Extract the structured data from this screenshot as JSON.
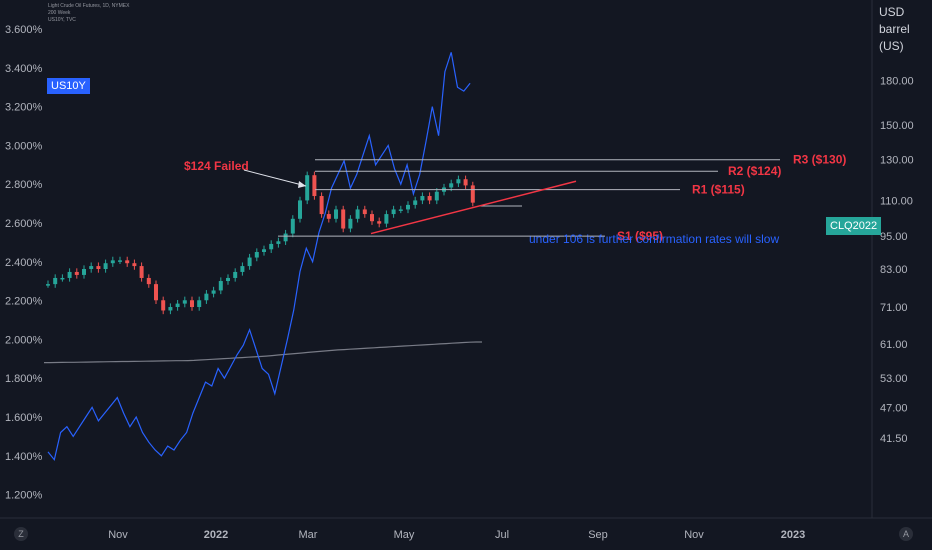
{
  "header": {
    "legend_lines": [
      "Light Crude Oil Futures, 1D, NYMEX",
      "200 Week",
      "US10Y, TVC"
    ],
    "unit_label": "USD\nbarrel (US)"
  },
  "badges": {
    "left_series": "US10Y",
    "right_series": "CLQ2022"
  },
  "footer": {
    "left_button": "Z",
    "right_button": "A"
  },
  "colors": {
    "background": "#131722",
    "yield_line": "#2962ff",
    "ma_line": "#787b86",
    "up_candle": "#26a69a",
    "down_candle": "#ef5350",
    "annotation_red": "#f23645",
    "annotation_blue": "#2962ff",
    "level_line": "#b2b5be"
  },
  "chart_data": {
    "type": "line",
    "grid": false,
    "left_axis": {
      "ticks": [
        "3.600%",
        "3.400%",
        "3.200%",
        "3.000%",
        "2.800%",
        "2.600%",
        "2.400%",
        "2.200%",
        "2.000%",
        "1.800%",
        "1.600%",
        "1.400%",
        "1.200%"
      ],
      "range": [
        1.1,
        3.7
      ]
    },
    "right_axis": {
      "ticks": [
        "180.00",
        "150.00",
        "130.00",
        "110.00",
        "95.00",
        "83.00",
        "71.00",
        "61.00",
        "53.00",
        "47.00",
        "41.50"
      ],
      "scale": "log",
      "range": [
        40,
        205
      ]
    },
    "x_axis": {
      "ticks": [
        "Nov",
        "2022",
        "Mar",
        "May",
        "Jul",
        "Sep",
        "Nov",
        "2023"
      ],
      "bold": [
        "2022",
        "2023"
      ]
    },
    "series": [
      {
        "name": "US10Y",
        "axis": "left",
        "points": [
          [
            0,
            1.42
          ],
          [
            1,
            1.38
          ],
          [
            2,
            1.52
          ],
          [
            3,
            1.55
          ],
          [
            4,
            1.5
          ],
          [
            5,
            1.55
          ],
          [
            6,
            1.6
          ],
          [
            7,
            1.65
          ],
          [
            8,
            1.58
          ],
          [
            9,
            1.62
          ],
          [
            10,
            1.66
          ],
          [
            11,
            1.7
          ],
          [
            12,
            1.62
          ],
          [
            13,
            1.55
          ],
          [
            14,
            1.6
          ],
          [
            15,
            1.52
          ],
          [
            16,
            1.47
          ],
          [
            17,
            1.43
          ],
          [
            18,
            1.4
          ],
          [
            19,
            1.45
          ],
          [
            20,
            1.43
          ],
          [
            21,
            1.48
          ],
          [
            22,
            1.52
          ],
          [
            23,
            1.62
          ],
          [
            24,
            1.7
          ],
          [
            25,
            1.78
          ],
          [
            26,
            1.76
          ],
          [
            27,
            1.85
          ],
          [
            28,
            1.8
          ],
          [
            29,
            1.86
          ],
          [
            30,
            1.92
          ],
          [
            31,
            1.97
          ],
          [
            32,
            2.05
          ],
          [
            33,
            1.95
          ],
          [
            34,
            1.85
          ],
          [
            35,
            1.82
          ],
          [
            36,
            1.72
          ],
          [
            37,
            1.86
          ],
          [
            38,
            2.0
          ],
          [
            39,
            2.15
          ],
          [
            40,
            2.35
          ],
          [
            41,
            2.47
          ],
          [
            42,
            2.4
          ],
          [
            43,
            2.55
          ],
          [
            44,
            2.65
          ],
          [
            45,
            2.78
          ],
          [
            46,
            2.85
          ],
          [
            47,
            2.92
          ],
          [
            48,
            2.78
          ],
          [
            49,
            2.85
          ],
          [
            50,
            2.95
          ],
          [
            51,
            3.05
          ],
          [
            52,
            2.9
          ],
          [
            53,
            2.95
          ],
          [
            54,
            3.0
          ],
          [
            55,
            2.88
          ],
          [
            56,
            2.8
          ],
          [
            57,
            2.9
          ],
          [
            58,
            2.75
          ],
          [
            59,
            2.85
          ],
          [
            60,
            3.02
          ],
          [
            61,
            3.2
          ],
          [
            62,
            3.05
          ],
          [
            63,
            3.38
          ],
          [
            64,
            3.48
          ],
          [
            65,
            3.3
          ],
          [
            66,
            3.28
          ],
          [
            67,
            3.32
          ]
        ]
      },
      {
        "name": "CLQ2022",
        "axis": "right",
        "close": [
          [
            0,
            78
          ],
          [
            1,
            80
          ],
          [
            2,
            80
          ],
          [
            3,
            82
          ],
          [
            4,
            81
          ],
          [
            5,
            83
          ],
          [
            6,
            84
          ],
          [
            7,
            83
          ],
          [
            8,
            85
          ],
          [
            9,
            86
          ],
          [
            10,
            86
          ],
          [
            11,
            85
          ],
          [
            12,
            84
          ],
          [
            13,
            80
          ],
          [
            14,
            78
          ],
          [
            15,
            73
          ],
          [
            16,
            70
          ],
          [
            17,
            71
          ],
          [
            18,
            72
          ],
          [
            19,
            73
          ],
          [
            20,
            71
          ],
          [
            21,
            73
          ],
          [
            22,
            75
          ],
          [
            23,
            76
          ],
          [
            24,
            79
          ],
          [
            25,
            80
          ],
          [
            26,
            82
          ],
          [
            27,
            84
          ],
          [
            28,
            87
          ],
          [
            29,
            89
          ],
          [
            30,
            90
          ],
          [
            31,
            92
          ],
          [
            32,
            93
          ],
          [
            33,
            96
          ],
          [
            34,
            102
          ],
          [
            35,
            110
          ],
          [
            36,
            122
          ],
          [
            37,
            112
          ],
          [
            38,
            104
          ],
          [
            39,
            102
          ],
          [
            40,
            106
          ],
          [
            41,
            98
          ],
          [
            42,
            102
          ],
          [
            43,
            106
          ],
          [
            44,
            104
          ],
          [
            45,
            101
          ],
          [
            46,
            100
          ],
          [
            47,
            104
          ],
          [
            48,
            106
          ],
          [
            49,
            106
          ],
          [
            50,
            108
          ],
          [
            51,
            110
          ],
          [
            52,
            112
          ],
          [
            53,
            110
          ],
          [
            54,
            114
          ],
          [
            55,
            116
          ],
          [
            56,
            118
          ],
          [
            57,
            120
          ],
          [
            58,
            117
          ],
          [
            59,
            109
          ]
        ]
      },
      {
        "name": "200 Week",
        "axis": "right",
        "points": [
          [
            0,
            56.5
          ],
          [
            20,
            57.0
          ],
          [
            30,
            58.0
          ],
          [
            40,
            59.5
          ],
          [
            59,
            61.5
          ]
        ]
      }
    ],
    "levels": [
      {
        "label": "R3 ($130)",
        "value": 130
      },
      {
        "label": "R2 ($124)",
        "value": 124
      },
      {
        "label": "R1 ($115)",
        "value": 115
      },
      {
        "label": "S1 ($95)",
        "value": 95
      },
      {
        "label": "",
        "value": 107.5
      }
    ],
    "annotations": [
      {
        "text": "$124 Failed",
        "color": "red"
      },
      {
        "text": "under 106 is further confirmation rates will slow",
        "color": "blue"
      }
    ],
    "trendline": {
      "from": [
        44,
        96
      ],
      "to": [
        62,
        119
      ]
    }
  }
}
